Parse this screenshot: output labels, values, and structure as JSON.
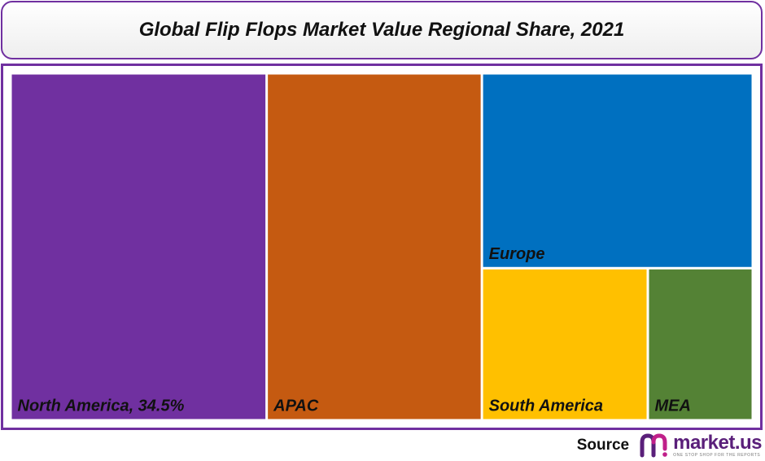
{
  "chart_data": {
    "type": "treemap",
    "title": "Global Flip Flops Market Value Regional Share, 2021",
    "tiles": [
      {
        "name": "North America",
        "label": "North America, 34.5%",
        "value": 34.5,
        "color": "#7030a0"
      },
      {
        "name": "APAC",
        "label": "APAC",
        "value": 29.0,
        "color": "#c55a11"
      },
      {
        "name": "Europe",
        "label": "Europe",
        "value": 20.5,
        "color": "#0070c0"
      },
      {
        "name": "South America",
        "label": "South America",
        "value": 9.8,
        "color": "#ffc000"
      },
      {
        "name": "MEA",
        "label": "MEA",
        "value": 6.2,
        "color": "#548235"
      }
    ]
  },
  "footer": {
    "source_label": "Source",
    "brand_name": "market.us",
    "brand_tagline": "ONE STOP SHOP FOR THE REPORTS"
  },
  "colors": {
    "accent": "#7030a0",
    "brand": "#5a1f7a"
  },
  "icons": {
    "brand_logo": "market-us-logo-icon"
  }
}
